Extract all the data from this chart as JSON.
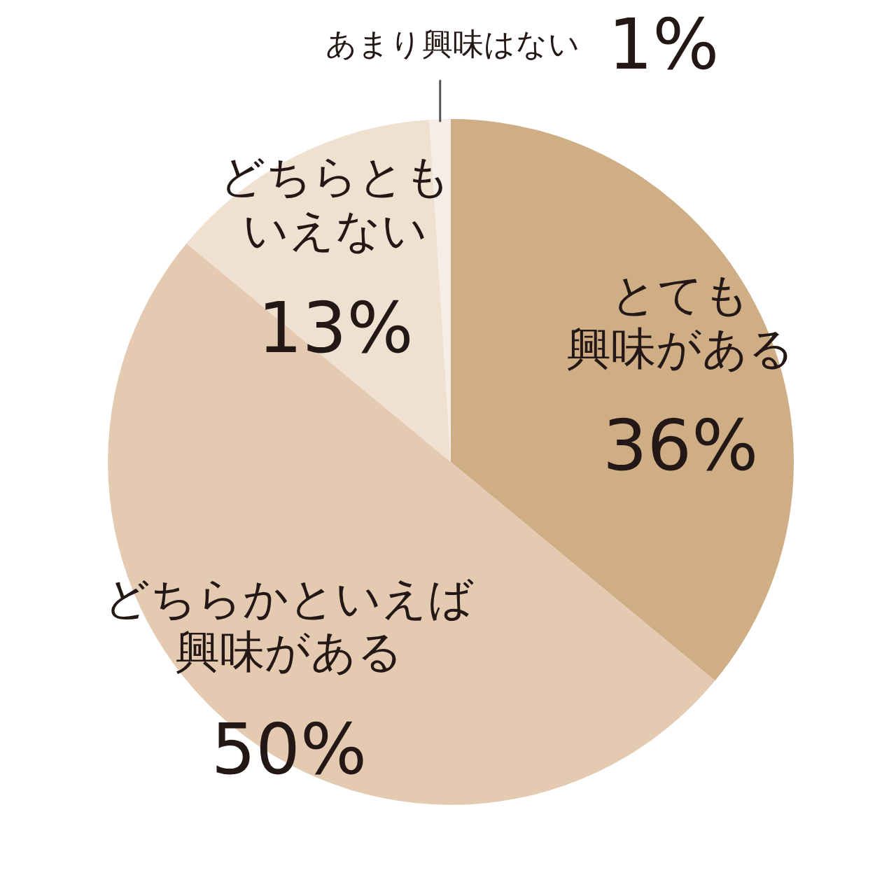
{
  "chart_data": {
    "type": "pie",
    "categories": [
      "とても興味がある",
      "どちらかといえば興味がある",
      "どちらともいえない",
      "あまり興味はない"
    ],
    "values": [
      36,
      50,
      13,
      1
    ],
    "colors": [
      "#cfad85",
      "#e3cab0",
      "#efe0d0",
      "#f6eee6"
    ],
    "value_labels": [
      "36%",
      "50%",
      "13%",
      "1%"
    ],
    "legend": false
  }
}
